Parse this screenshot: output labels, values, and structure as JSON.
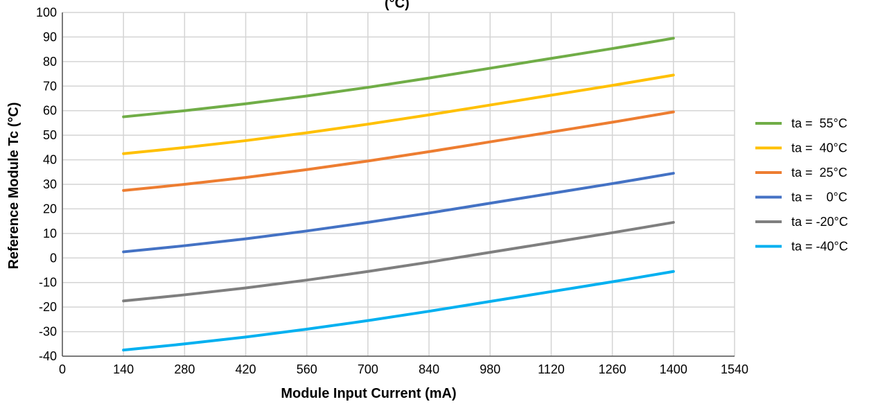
{
  "chart_data": {
    "type": "line",
    "title": "(°C)",
    "xlabel": "Module Input Current (mA)",
    "ylabel": "Reference Module Tc (°C)",
    "xlim": [
      0,
      1540
    ],
    "ylim": [
      -40,
      100
    ],
    "x_ticks": [
      "0",
      "140",
      "280",
      "420",
      "560",
      "700",
      "840",
      "980",
      "1120",
      "1260",
      "1400",
      "1540"
    ],
    "y_ticks": [
      "100",
      "90",
      "80",
      "70",
      "60",
      "50",
      "40",
      "30",
      "20",
      "10",
      "0",
      "-10",
      "-20",
      "-30",
      "-40"
    ],
    "grid": true,
    "legend_position": "right",
    "x": [
      140,
      280,
      420,
      560,
      700,
      840,
      980,
      1120,
      1260,
      1400
    ],
    "series": [
      {
        "name": "ta =  55°C",
        "color": "#70ad47",
        "values": [
          57.5,
          60,
          62.8,
          66,
          69.5,
          73.3,
          77.3,
          81.3,
          85.3,
          89.5
        ]
      },
      {
        "name": "ta =  40°C",
        "color": "#ffc000",
        "values": [
          42.5,
          45,
          47.8,
          51,
          54.5,
          58.3,
          62.3,
          66.3,
          70.3,
          74.5
        ]
      },
      {
        "name": "ta =  25°C",
        "color": "#ed7d31",
        "values": [
          27.5,
          30,
          32.8,
          36,
          39.5,
          43.3,
          47.3,
          51.3,
          55.3,
          59.5
        ]
      },
      {
        "name": "ta =    0°C",
        "color": "#4472c4",
        "values": [
          2.5,
          5,
          7.8,
          11,
          14.5,
          18.3,
          22.3,
          26.3,
          30.3,
          34.5
        ]
      },
      {
        "name": "ta = -20°C",
        "color": "#7f7f7f",
        "values": [
          -17.5,
          -15,
          -12.2,
          -9,
          -5.5,
          -1.7,
          2.3,
          6.3,
          10.3,
          14.5
        ]
      },
      {
        "name": "ta = -40°C",
        "color": "#00b0f0",
        "values": [
          -37.5,
          -35,
          -32.2,
          -29,
          -25.5,
          -21.7,
          -17.7,
          -13.7,
          -9.7,
          -5.5
        ]
      }
    ]
  }
}
